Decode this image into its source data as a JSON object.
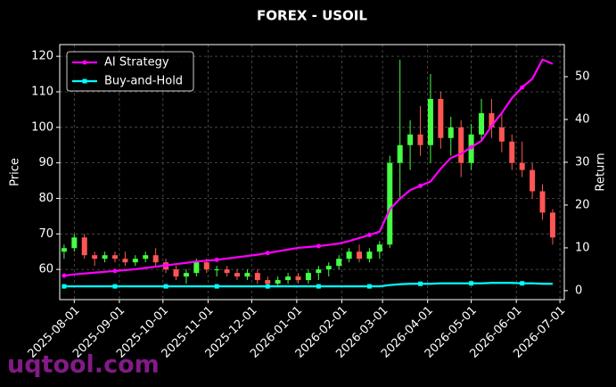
{
  "chart_data": {
    "type": "candlestick",
    "title": "FOREX - USOIL",
    "ylabel": "Price",
    "y2label": "Return",
    "watermark": "uqtool.com",
    "x": [
      "2025-07-25",
      "2025-08-01",
      "2025-08-08",
      "2025-08-15",
      "2025-08-22",
      "2025-08-29",
      "2025-09-05",
      "2025-09-12",
      "2025-09-19",
      "2025-09-26",
      "2025-10-03",
      "2025-10-10",
      "2025-10-17",
      "2025-10-24",
      "2025-10-31",
      "2025-11-07",
      "2025-11-14",
      "2025-11-21",
      "2025-11-28",
      "2025-12-05",
      "2025-12-12",
      "2025-12-19",
      "2025-12-26",
      "2026-01-02",
      "2026-01-09",
      "2026-01-16",
      "2026-01-23",
      "2026-01-30",
      "2026-02-06",
      "2026-02-13",
      "2026-02-20",
      "2026-02-27",
      "2026-03-06",
      "2026-03-13",
      "2026-03-20",
      "2026-03-27",
      "2026-04-03",
      "2026-04-10",
      "2026-04-17",
      "2026-04-24",
      "2026-05-01",
      "2026-05-08",
      "2026-05-15",
      "2026-05-22",
      "2026-05-29",
      "2026-06-05",
      "2026-06-12",
      "2026-06-19",
      "2026-06-26"
    ],
    "open": [
      65,
      66,
      69,
      64,
      63,
      64,
      63,
      62,
      63,
      64,
      62,
      60,
      58,
      59,
      62,
      60,
      60,
      59,
      58,
      59,
      57,
      56,
      57,
      58,
      57,
      59,
      60,
      61,
      63,
      65,
      63,
      65,
      67,
      90,
      95,
      98,
      95,
      108,
      97,
      100,
      90,
      98,
      104,
      100,
      96,
      90,
      88,
      82,
      76
    ],
    "high": [
      67,
      70,
      70,
      65,
      65,
      65,
      65,
      64,
      65,
      66,
      63,
      61,
      60,
      63,
      63,
      61,
      61,
      60,
      60,
      60,
      58,
      58,
      59,
      59,
      60,
      61,
      62,
      64,
      66,
      67,
      66,
      68,
      92,
      119,
      102,
      106,
      115,
      110,
      103,
      102,
      101,
      108,
      108,
      104,
      98,
      96,
      90,
      84,
      77
    ],
    "low": [
      63,
      65,
      63,
      61,
      62,
      62,
      61,
      61,
      62,
      61,
      59,
      57,
      56,
      58,
      59,
      58,
      58,
      57,
      57,
      56,
      55,
      55,
      56,
      56,
      56,
      57,
      58,
      60,
      62,
      62,
      62,
      63,
      66,
      80,
      88,
      92,
      90,
      94,
      92,
      86,
      88,
      96,
      97,
      93,
      88,
      86,
      80,
      74,
      67
    ],
    "close": [
      66,
      69,
      64,
      63,
      64,
      63,
      62,
      63,
      64,
      62,
      60,
      58,
      59,
      62,
      60,
      60,
      59,
      58,
      59,
      57,
      56,
      57,
      58,
      57,
      59,
      60,
      61,
      63,
      65,
      63,
      65,
      67,
      90,
      95,
      98,
      95,
      108,
      97,
      100,
      90,
      98,
      104,
      100,
      96,
      90,
      88,
      82,
      76,
      69
    ],
    "up_color": "#44ff44",
    "down_color": "#ff5555",
    "series": [
      {
        "name": "AI Strategy",
        "color": "#ff00ff",
        "axis": "y2",
        "marker": "circle",
        "values": [
          3.5,
          3.8,
          4.0,
          4.2,
          4.4,
          4.6,
          4.8,
          5.0,
          5.3,
          5.6,
          5.9,
          6.2,
          6.5,
          6.8,
          7.0,
          7.2,
          7.5,
          7.8,
          8.1,
          8.4,
          8.8,
          9.2,
          9.6,
          10.0,
          10.2,
          10.4,
          10.7,
          11.0,
          11.6,
          12.3,
          13.0,
          13.8,
          19.0,
          21.5,
          23.5,
          24.5,
          25.5,
          28.5,
          31.0,
          32.0,
          33.5,
          35.0,
          38.5,
          41.5,
          45.0,
          47.5,
          49.5,
          54.0,
          53.0
        ]
      },
      {
        "name": "Buy-and-Hold",
        "color": "#00ffff",
        "axis": "y2",
        "marker": "square",
        "values": [
          1.0,
          1.0,
          1.0,
          1.0,
          1.0,
          1.0,
          1.0,
          1.0,
          1.0,
          1.0,
          1.0,
          1.0,
          1.0,
          1.0,
          1.0,
          1.0,
          1.0,
          1.0,
          1.0,
          1.0,
          1.0,
          1.0,
          1.0,
          1.0,
          1.0,
          1.0,
          1.0,
          1.0,
          1.0,
          1.0,
          1.0,
          1.0,
          1.3,
          1.5,
          1.6,
          1.6,
          1.6,
          1.7,
          1.7,
          1.7,
          1.7,
          1.7,
          1.8,
          1.8,
          1.8,
          1.7,
          1.7,
          1.6,
          1.6
        ]
      }
    ],
    "xlim": [
      "2025-07-22",
      "2026-07-04"
    ],
    "xticks": [
      "2025-08-01",
      "2025-09-01",
      "2025-10-01",
      "2025-11-01",
      "2025-12-01",
      "2026-01-01",
      "2026-02-01",
      "2026-03-01",
      "2026-04-01",
      "2026-05-01",
      "2026-06-01",
      "2026-07-01"
    ],
    "ylim": [
      51.5,
      123.3
    ],
    "yticks": [
      60,
      70,
      80,
      90,
      100,
      110,
      120
    ],
    "y2lim": [
      -2.1,
      57.5
    ],
    "y2ticks": [
      0,
      10,
      20,
      30,
      40,
      50
    ],
    "grid": true,
    "legend": "upper left"
  }
}
